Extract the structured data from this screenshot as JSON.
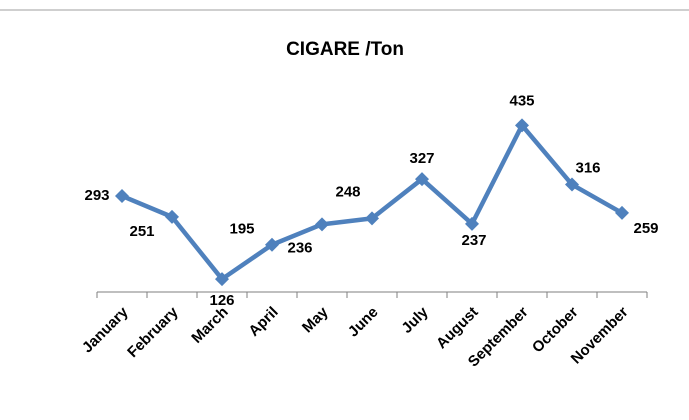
{
  "chart_data": {
    "type": "line",
    "title": "CIGARE  /Ton",
    "categories": [
      "January",
      "February",
      "March",
      "April",
      "May",
      "June",
      "July",
      "August",
      "September",
      "October",
      "November"
    ],
    "series": [
      {
        "name": "CIGARE",
        "color": "#4f81bd",
        "values": [
          293,
          251,
          126,
          195,
          236,
          248,
          327,
          237,
          435,
          316,
          259
        ]
      }
    ],
    "ylim": [
      100,
      500
    ]
  }
}
